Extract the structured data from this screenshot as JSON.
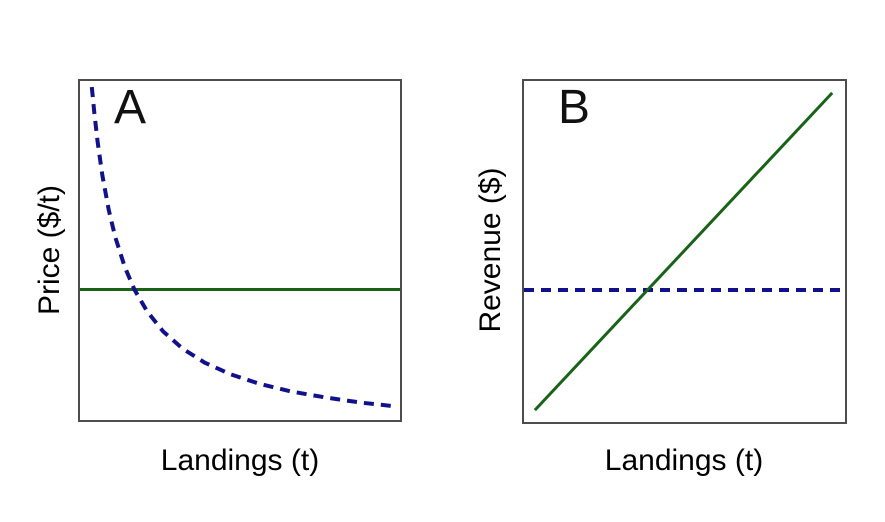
{
  "chart_data": {
    "type": "line",
    "figure": "two-panel-line-figure",
    "colors": {
      "navy": "#11118b",
      "green": "#186318",
      "box_border": "#4d4d4d",
      "text": "#000000",
      "background": "#ffffff"
    },
    "panels": [
      {
        "id": "A",
        "label": "A",
        "xlabel": "Landings (t)",
        "ylabel": "Price ($/t)",
        "xlim": [
          0,
          1
        ],
        "ylim": [
          0,
          1
        ],
        "ticks": false,
        "grid": false,
        "legend": false,
        "series": [
          {
            "name": "constant-price-line",
            "kind": "horizontal",
            "color": "green",
            "style": "solid",
            "width": 3,
            "points": [
              [
                0,
                0.385
              ],
              [
                1,
                0.385
              ]
            ]
          },
          {
            "name": "demand-curve",
            "kind": "hyperbola",
            "color": "navy",
            "style": "dashed",
            "width": 4,
            "points": [
              [
                0.037,
                0.982
              ],
              [
                0.045,
                0.904
              ],
              [
                0.055,
                0.821
              ],
              [
                0.07,
                0.721
              ],
              [
                0.09,
                0.619
              ],
              [
                0.11,
                0.54
              ],
              [
                0.14,
                0.451
              ],
              [
                0.17,
                0.385
              ],
              [
                0.21,
                0.32
              ],
              [
                0.26,
                0.261
              ],
              [
                0.32,
                0.211
              ],
              [
                0.39,
                0.169
              ],
              [
                0.47,
                0.135
              ],
              [
                0.56,
                0.107
              ],
              [
                0.66,
                0.084
              ],
              [
                0.77,
                0.066
              ],
              [
                0.88,
                0.051
              ],
              [
                0.978,
                0.041
              ]
            ]
          }
        ]
      },
      {
        "id": "B",
        "label": "B",
        "xlabel": "Landings (t)",
        "ylabel": "Revenue ($)",
        "xlim": [
          0,
          1
        ],
        "ylim": [
          0,
          1
        ],
        "ticks": false,
        "grid": false,
        "legend": false,
        "series": [
          {
            "name": "constant-revenue-line",
            "kind": "horizontal",
            "color": "navy",
            "style": "dashed",
            "width": 4,
            "points": [
              [
                0,
                0.387
              ],
              [
                1,
                0.387
              ]
            ]
          },
          {
            "name": "revenue-line",
            "kind": "line",
            "color": "green",
            "style": "solid",
            "width": 3,
            "points": [
              [
                0.034,
                0.035
              ],
              [
                0.96,
                0.965
              ]
            ]
          }
        ]
      }
    ]
  }
}
